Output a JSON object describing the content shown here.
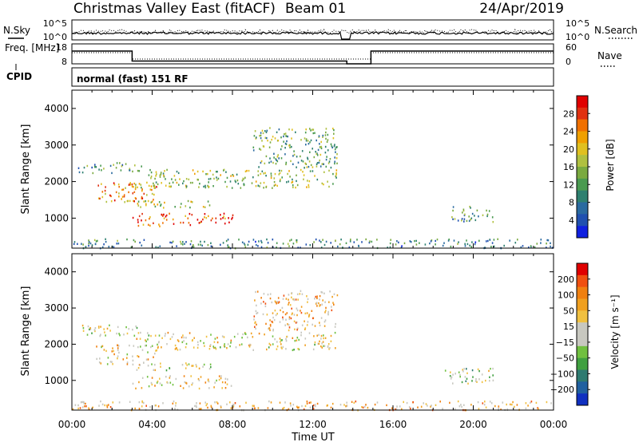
{
  "header": {
    "site": "Christmas Valley East (fitACF)",
    "beam": "Beam 01",
    "date": "24/Apr/2019"
  },
  "colors": {
    "ink": "#000000",
    "background": "#ffffff"
  },
  "chart_data": [
    {
      "type": "line",
      "panel": "noise",
      "left_label": "N.Sky",
      "right_label": "N.Search",
      "left_ticks": [
        "10^5",
        "10^0"
      ],
      "right_ticks": [
        "10^5",
        "10^0"
      ],
      "x_range": [
        0,
        24
      ]
    },
    {
      "type": "line",
      "panel": "frequency",
      "left_label": "Freq. [MHz]",
      "right_label": "Nave",
      "left_ticks": [
        "18",
        "8"
      ],
      "right_ticks": [
        "60",
        "0"
      ],
      "ylim_left": [
        8,
        18
      ],
      "ylim_right": [
        0,
        60
      ],
      "freq_segments": [
        {
          "x0": 0,
          "x1": 3.0,
          "y": 15.2
        },
        {
          "x0": 3.0,
          "x1": 13.7,
          "y": 10.2
        },
        {
          "x0": 13.7,
          "x1": 14.9,
          "y": 8.8
        },
        {
          "x0": 14.9,
          "x1": 24,
          "y": 15.2
        }
      ]
    },
    {
      "type": "table",
      "panel": "cpid",
      "label": "CPID",
      "text": "normal (fast) 151 RF"
    },
    {
      "type": "heatmap",
      "panel": "power",
      "ylabel": "Slant Range [km]",
      "xlabel": "Time UT",
      "y_ticks": [
        "1000",
        "2000",
        "3000",
        "4000"
      ],
      "x_ticks": [
        "00:00",
        "04:00",
        "08:00",
        "12:00",
        "16:00",
        "20:00",
        "00:00"
      ],
      "ylim": [
        180,
        4500
      ],
      "xlim": [
        0,
        24
      ],
      "colorbar": {
        "title": "Power [dB]",
        "ticks": [
          "4",
          "8",
          "12",
          "16",
          "20",
          "24",
          "28"
        ],
        "colors": [
          "#1020e0",
          "#2050b0",
          "#2a6aa0",
          "#2e8070",
          "#4a9a50",
          "#7aaa40",
          "#b0c040",
          "#e0c020",
          "#f0a000",
          "#f07000",
          "#e03010",
          "#e00000"
        ]
      },
      "features": [
        {
          "x0": 0.3,
          "x1": 3.5,
          "y0": 2250,
          "y1": 2550,
          "level": 0.35
        },
        {
          "x0": 1.2,
          "x1": 4.2,
          "y0": 1450,
          "y1": 2000,
          "level": 0.75
        },
        {
          "x0": 3.0,
          "x1": 13.2,
          "y0": 1850,
          "y1": 2350,
          "level": 0.5
        },
        {
          "x0": 9.0,
          "x1": 13.2,
          "y0": 2400,
          "y1": 3500,
          "level": 0.4
        },
        {
          "x0": 3.0,
          "x1": 7.0,
          "y0": 1300,
          "y1": 1500,
          "level": 0.55
        },
        {
          "x0": 3.0,
          "x1": 8.0,
          "y0": 800,
          "y1": 1150,
          "level": 0.85
        },
        {
          "x0": 18.5,
          "x1": 21.0,
          "y0": 900,
          "y1": 1350,
          "level": 0.35
        },
        {
          "x0": 0,
          "x1": 24,
          "y0": 200,
          "y1": 450,
          "level": 0.3
        }
      ]
    },
    {
      "type": "heatmap",
      "panel": "velocity",
      "ylabel": "Slant Range [km]",
      "xlabel": "Time UT",
      "y_ticks": [
        "1000",
        "2000",
        "3000",
        "4000"
      ],
      "x_ticks": [
        "00:00",
        "04:00",
        "08:00",
        "12:00",
        "16:00",
        "20:00",
        "00:00"
      ],
      "ylim": [
        180,
        4500
      ],
      "xlim": [
        0,
        24
      ],
      "colorbar": {
        "title": "Velocity [m s⁻¹]",
        "ticks": [
          "200",
          "100",
          "50",
          "15",
          "−15",
          "−50",
          "−100",
          "−200"
        ],
        "colors": [
          "#1030c0",
          "#2060a0",
          "#2e7a70",
          "#40a040",
          "#70c040",
          "#c8c8c0",
          "#c8c8c0",
          "#f0c040",
          "#f0a020",
          "#f08010",
          "#f05010",
          "#e00000"
        ]
      },
      "features": [
        {
          "x0": 0.3,
          "x1": 3.5,
          "y0": 2250,
          "y1": 2550,
          "level": 0.5
        },
        {
          "x0": 1.2,
          "x1": 4.2,
          "y0": 1450,
          "y1": 2000,
          "level": 0.6
        },
        {
          "x0": 3.0,
          "x1": 13.2,
          "y0": 1850,
          "y1": 2350,
          "level": 0.55
        },
        {
          "x0": 9.0,
          "x1": 13.2,
          "y0": 2400,
          "y1": 3500,
          "level": 0.65
        },
        {
          "x0": 3.0,
          "x1": 7.0,
          "y0": 1300,
          "y1": 1500,
          "level": 0.45
        },
        {
          "x0": 3.0,
          "x1": 8.0,
          "y0": 800,
          "y1": 1150,
          "level": 0.6
        },
        {
          "x0": 18.5,
          "x1": 21.0,
          "y0": 900,
          "y1": 1350,
          "level": 0.45
        },
        {
          "x0": 0,
          "x1": 24,
          "y0": 200,
          "y1": 450,
          "level": 0.65
        }
      ]
    }
  ]
}
